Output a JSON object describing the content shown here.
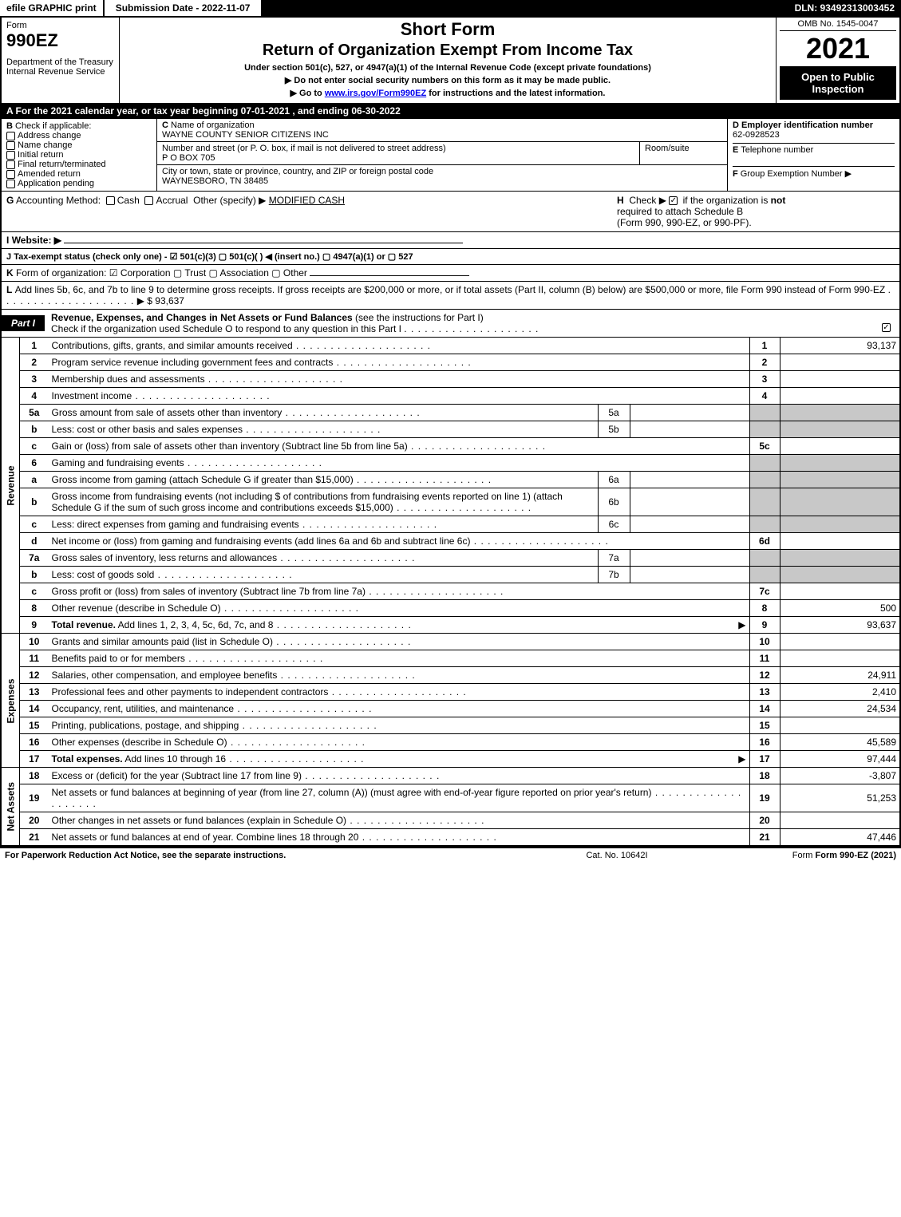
{
  "topbar": {
    "efile": "efile GRAPHIC print",
    "submission": "Submission Date - 2022-11-07",
    "dln": "DLN: 93492313003452"
  },
  "header": {
    "form_label": "Form",
    "form_number": "990EZ",
    "dept": "Department of the Treasury",
    "irs": "Internal Revenue Service",
    "short_form": "Short Form",
    "title": "Return of Organization Exempt From Income Tax",
    "subtitle": "Under section 501(c), 527, or 4947(a)(1) of the Internal Revenue Code (except private foundations)",
    "note1": "▶ Do not enter social security numbers on this form as it may be made public.",
    "note2": "▶ Go to ",
    "note2_link": "www.irs.gov/Form990EZ",
    "note2_tail": " for instructions and the latest information.",
    "omb": "OMB No. 1545-0047",
    "year": "2021",
    "open": "Open to Public Inspection"
  },
  "sectionA": "A  For the 2021 calendar year, or tax year beginning 07-01-2021 , and ending 06-30-2022",
  "boxB": {
    "title": "Check if applicable:",
    "items": [
      "Address change",
      "Name change",
      "Initial return",
      "Final return/terminated",
      "Amended return",
      "Application pending"
    ]
  },
  "boxC": {
    "name_label": "Name of organization",
    "name": "WAYNE COUNTY SENIOR CITIZENS INC",
    "street_label": "Number and street (or P. O. box, if mail is not delivered to street address)",
    "room_label": "Room/suite",
    "street": "P O BOX 705",
    "city_label": "City or town, state or province, country, and ZIP or foreign postal code",
    "city": "WAYNESBORO, TN  38485"
  },
  "boxD": {
    "label": "Employer identification number",
    "value": "62-0928523"
  },
  "boxE": {
    "label": "Telephone number",
    "value": ""
  },
  "boxF": {
    "label": "Group Exemption Number  ▶",
    "value": ""
  },
  "lineG": {
    "label": "Accounting Method:",
    "cash": "Cash",
    "accrual": "Accrual",
    "other": "Other (specify) ▶",
    "other_val": "MODIFIED CASH"
  },
  "lineH": {
    "text1": "Check ▶",
    "text2": "if the organization is ",
    "not": "not",
    "text3": "required to attach Schedule B",
    "text4": "(Form 990, 990-EZ, or 990-PF)."
  },
  "lineI": {
    "label": "Website: ▶",
    "value": ""
  },
  "lineJ": "Tax-exempt status (check only one) -  ☑ 501(c)(3)  ▢ 501(c)(  ) ◀ (insert no.)  ▢ 4947(a)(1) or  ▢ 527",
  "lineK": "Form of organization:  ☑ Corporation  ▢ Trust  ▢ Association  ▢ Other",
  "lineL": {
    "text": "Add lines 5b, 6c, and 7b to line 9 to determine gross receipts. If gross receipts are $200,000 or more, or if total assets (Part II, column (B) below) are $500,000 or more, file Form 990 instead of Form 990-EZ",
    "amount": "▶ $ 93,637"
  },
  "partI": {
    "label": "Part I",
    "title": "Revenue, Expenses, and Changes in Net Assets or Fund Balances",
    "paren": "(see the instructions for Part I)",
    "check_line": "Check if the organization used Schedule O to respond to any question in this Part I",
    "checked": true
  },
  "sections": {
    "revenue": "Revenue",
    "expenses": "Expenses",
    "netassets": "Net Assets"
  },
  "lines": [
    {
      "n": "1",
      "desc": "Contributions, gifts, grants, and similar amounts received",
      "rn": "1",
      "val": "93,137"
    },
    {
      "n": "2",
      "desc": "Program service revenue including government fees and contracts",
      "rn": "2",
      "val": ""
    },
    {
      "n": "3",
      "desc": "Membership dues and assessments",
      "rn": "3",
      "val": ""
    },
    {
      "n": "4",
      "desc": "Investment income",
      "rn": "4",
      "val": ""
    },
    {
      "n": "5a",
      "desc": "Gross amount from sale of assets other than inventory",
      "mid_n": "5a",
      "mid_v": "",
      "gray": true
    },
    {
      "n": "b",
      "desc": "Less: cost or other basis and sales expenses",
      "mid_n": "5b",
      "mid_v": "",
      "gray": true
    },
    {
      "n": "c",
      "desc": "Gain or (loss) from sale of assets other than inventory (Subtract line 5b from line 5a)",
      "rn": "5c",
      "val": ""
    },
    {
      "n": "6",
      "desc": "Gaming and fundraising events",
      "gray": true,
      "nocells": true
    },
    {
      "n": "a",
      "desc": "Gross income from gaming (attach Schedule G if greater than $15,000)",
      "mid_n": "6a",
      "mid_v": "",
      "gray": true
    },
    {
      "n": "b",
      "desc": "Gross income from fundraising events (not including $                    of contributions from fundraising events reported on line 1) (attach Schedule G if the sum of such gross income and contributions exceeds $15,000)",
      "mid_n": "6b",
      "mid_v": "",
      "gray": true
    },
    {
      "n": "c",
      "desc": "Less: direct expenses from gaming and fundraising events",
      "mid_n": "6c",
      "mid_v": "",
      "gray": true
    },
    {
      "n": "d",
      "desc": "Net income or (loss) from gaming and fundraising events (add lines 6a and 6b and subtract line 6c)",
      "rn": "6d",
      "val": ""
    },
    {
      "n": "7a",
      "desc": "Gross sales of inventory, less returns and allowances",
      "mid_n": "7a",
      "mid_v": "",
      "gray": true
    },
    {
      "n": "b",
      "desc": "Less: cost of goods sold",
      "mid_n": "7b",
      "mid_v": "",
      "gray": true
    },
    {
      "n": "c",
      "desc": "Gross profit or (loss) from sales of inventory (Subtract line 7b from line 7a)",
      "rn": "7c",
      "val": ""
    },
    {
      "n": "8",
      "desc": "Other revenue (describe in Schedule O)",
      "rn": "8",
      "val": "500"
    },
    {
      "n": "9",
      "desc": "Total revenue. Add lines 1, 2, 3, 4, 5c, 6d, 7c, and 8",
      "rn": "9",
      "val": "93,637",
      "bold": true,
      "arrow": true
    }
  ],
  "exp_lines": [
    {
      "n": "10",
      "desc": "Grants and similar amounts paid (list in Schedule O)",
      "rn": "10",
      "val": ""
    },
    {
      "n": "11",
      "desc": "Benefits paid to or for members",
      "rn": "11",
      "val": ""
    },
    {
      "n": "12",
      "desc": "Salaries, other compensation, and employee benefits",
      "rn": "12",
      "val": "24,911"
    },
    {
      "n": "13",
      "desc": "Professional fees and other payments to independent contractors",
      "rn": "13",
      "val": "2,410"
    },
    {
      "n": "14",
      "desc": "Occupancy, rent, utilities, and maintenance",
      "rn": "14",
      "val": "24,534"
    },
    {
      "n": "15",
      "desc": "Printing, publications, postage, and shipping",
      "rn": "15",
      "val": ""
    },
    {
      "n": "16",
      "desc": "Other expenses (describe in Schedule O)",
      "rn": "16",
      "val": "45,589"
    },
    {
      "n": "17",
      "desc": "Total expenses. Add lines 10 through 16",
      "rn": "17",
      "val": "97,444",
      "bold": true,
      "arrow": true
    }
  ],
  "na_lines": [
    {
      "n": "18",
      "desc": "Excess or (deficit) for the year (Subtract line 17 from line 9)",
      "rn": "18",
      "val": "-3,807"
    },
    {
      "n": "19",
      "desc": "Net assets or fund balances at beginning of year (from line 27, column (A)) (must agree with end-of-year figure reported on prior year's return)",
      "rn": "19",
      "val": "51,253"
    },
    {
      "n": "20",
      "desc": "Other changes in net assets or fund balances (explain in Schedule O)",
      "rn": "20",
      "val": ""
    },
    {
      "n": "21",
      "desc": "Net assets or fund balances at end of year. Combine lines 18 through 20",
      "rn": "21",
      "val": "47,446"
    }
  ],
  "footer": {
    "left": "For Paperwork Reduction Act Notice, see the separate instructions.",
    "mid": "Cat. No. 10642I",
    "right": "Form 990-EZ (2021)"
  },
  "letters": {
    "A": "A",
    "B": "B",
    "C": "C",
    "D": "D",
    "E": "E",
    "F": "F",
    "G": "G",
    "H": "H",
    "I": "I",
    "J": "J",
    "K": "K",
    "L": "L"
  }
}
